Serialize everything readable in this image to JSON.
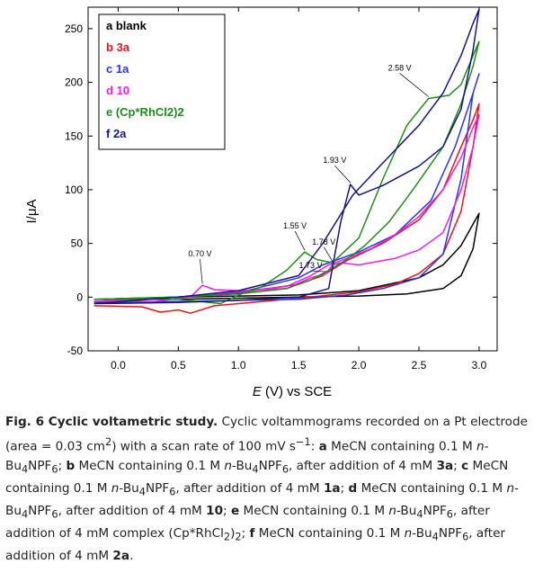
{
  "chart_data": {
    "type": "line",
    "xlabel_symbol": "E",
    "xlabel_rest": " (V) vs SCE",
    "ylabel": "I/μA",
    "xlim": [
      -0.25,
      3.15
    ],
    "ylim": [
      -50,
      270
    ],
    "xticks": [
      0.0,
      0.5,
      1.0,
      1.5,
      2.0,
      2.5,
      3.0
    ],
    "xtick_labels": [
      "0.0",
      "0.5",
      "1.0",
      "1.5",
      "2.0",
      "2.5",
      "3.0"
    ],
    "yticks": [
      -50,
      0,
      50,
      100,
      150,
      200,
      250
    ],
    "ytick_labels": [
      "-50",
      "0",
      "50",
      "100",
      "150",
      "200",
      "250"
    ],
    "legend_position": "top-left",
    "legend": [
      {
        "key": "a",
        "label": "blank",
        "color": "#000000"
      },
      {
        "key": "b",
        "label": "3a",
        "color": "#e8141b"
      },
      {
        "key": "c",
        "label": "1a",
        "color": "#2a37e6"
      },
      {
        "key": "d",
        "label": "10",
        "color": "#e722e0"
      },
      {
        "key": "e",
        "label": "(Cp*RhCl2)2",
        "color": "#228b1f"
      },
      {
        "key": "f",
        "label": "2a",
        "color": "#16167c"
      }
    ],
    "annotations": [
      {
        "text": "0.70 V",
        "x": 0.7,
        "y": 11,
        "label_x": 0.68,
        "label_y": 38
      },
      {
        "text": "1.55 V",
        "x": 1.55,
        "y": 42,
        "label_x": 1.47,
        "label_y": 64
      },
      {
        "text": "1.78 V",
        "x": 1.78,
        "y": 32,
        "label_x": 1.71,
        "label_y": 49
      },
      {
        "text": "1.73 V",
        "x": 1.73,
        "y": 22,
        "label_x": 1.6,
        "label_y": 27
      },
      {
        "text": "1.93 V",
        "x": 1.93,
        "y": 105,
        "label_x": 1.8,
        "label_y": 125
      },
      {
        "text": "2.58 V",
        "x": 2.58,
        "y": 185,
        "label_x": 2.34,
        "label_y": 211
      }
    ],
    "series": [
      {
        "name": "a blank",
        "color": "#000000",
        "x": [
          -0.2,
          0.5,
          1.0,
          1.5,
          2.0,
          2.4,
          2.7,
          2.85,
          2.95,
          3.0,
          2.95,
          2.85,
          2.7,
          2.5,
          2.0,
          1.5,
          1.0,
          0.5,
          -0.2
        ],
        "y": [
          -2,
          -2,
          -1,
          0,
          1,
          3,
          8,
          20,
          45,
          78,
          68,
          48,
          30,
          18,
          6,
          2,
          1,
          0,
          -2
        ]
      },
      {
        "name": "b 3a",
        "color": "#e8141b",
        "x": [
          -0.2,
          0.2,
          0.35,
          0.5,
          0.6,
          0.8,
          1.2,
          1.6,
          2.0,
          2.3,
          2.5,
          2.7,
          2.85,
          2.95,
          3.0,
          2.95,
          2.85,
          2.7,
          2.5,
          2.2,
          1.9,
          1.7,
          1.5,
          1.0,
          0.5,
          -0.2
        ],
        "y": [
          -8,
          -9,
          -14,
          -12,
          -15,
          -8,
          -4,
          0,
          5,
          12,
          22,
          40,
          80,
          140,
          180,
          165,
          140,
          100,
          72,
          50,
          34,
          20,
          12,
          4,
          0,
          -6
        ]
      },
      {
        "name": "c 1a",
        "color": "#2a37e6",
        "x": [
          -0.2,
          0.5,
          1.0,
          1.5,
          1.9,
          2.2,
          2.5,
          2.7,
          2.85,
          2.95,
          3.0,
          2.95,
          2.8,
          2.6,
          2.3,
          2.0,
          1.7,
          1.5,
          1.0,
          0.5,
          -0.2
        ],
        "y": [
          -5,
          -4,
          -3,
          -2,
          2,
          8,
          18,
          40,
          110,
          190,
          208,
          190,
          140,
          90,
          58,
          42,
          30,
          18,
          4,
          0,
          -4
        ]
      },
      {
        "name": "d 10",
        "color": "#e722e0",
        "x": [
          -0.2,
          0.3,
          0.6,
          0.7,
          0.8,
          1.0,
          1.4,
          1.6,
          1.73,
          1.78,
          1.85,
          2.0,
          2.3,
          2.5,
          2.7,
          2.85,
          2.95,
          3.0,
          2.95,
          2.85,
          2.7,
          2.5,
          2.3,
          2.1,
          1.9,
          1.75,
          1.6,
          1.4,
          1.0,
          0.5,
          -0.2
        ],
        "y": [
          -4,
          -4,
          0,
          11,
          7,
          6,
          8,
          18,
          22,
          30,
          32,
          30,
          36,
          44,
          60,
          100,
          140,
          170,
          158,
          130,
          100,
          75,
          58,
          45,
          36,
          30,
          20,
          10,
          5,
          0,
          -4
        ]
      },
      {
        "name": "e (Cp*RhCl2)2",
        "color": "#228b1f",
        "x": [
          -0.2,
          0.5,
          0.85,
          1.0,
          1.2,
          1.4,
          1.55,
          1.65,
          1.78,
          2.0,
          2.2,
          2.4,
          2.58,
          2.75,
          2.85,
          2.95,
          3.0,
          2.95,
          2.85,
          2.7,
          2.45,
          2.25,
          2.05,
          1.9,
          1.75,
          1.6,
          1.4,
          1.0,
          0.5,
          -0.2
        ],
        "y": [
          -2,
          -2,
          -6,
          2,
          10,
          25,
          42,
          35,
          32,
          55,
          110,
          160,
          185,
          188,
          198,
          225,
          238,
          215,
          180,
          140,
          100,
          70,
          48,
          35,
          25,
          16,
          8,
          3,
          0,
          -2
        ]
      },
      {
        "name": "f 2a",
        "color": "#16167c",
        "x": [
          -0.2,
          0.5,
          1.0,
          1.5,
          1.75,
          1.85,
          1.93,
          2.0,
          2.2,
          2.5,
          2.7,
          2.85,
          2.95,
          3.0,
          2.95,
          2.85,
          2.7,
          2.5,
          2.2,
          1.95,
          1.7,
          1.5,
          1.0,
          0.5,
          -0.2
        ],
        "y": [
          -6,
          -5,
          -3,
          0,
          8,
          70,
          105,
          95,
          104,
          122,
          140,
          175,
          230,
          268,
          255,
          225,
          190,
          160,
          125,
          95,
          50,
          20,
          6,
          0,
          -6
        ]
      }
    ]
  },
  "caption": {
    "title": "Fig. 6 Cyclic voltametric study.",
    "t1": " Cyclic voltammograms recorded on a Pt electrode (area = 0.03 cm",
    "area_exp": "2",
    "t2": ") with a scan rate of 100 mV s",
    "rate_exp": "−1",
    "t3": ": ",
    "a_key": "a",
    "a_text": " MeCN containing 0.1 M ",
    "a_n": "n",
    "a_salt": "-Bu",
    "a_sub4": "4",
    "a_npf": "NPF",
    "a_sub6": "6",
    "a_end": "; ",
    "b_key": "b",
    "b_text": " MeCN containing 0.1 M ",
    "b_n": "n",
    "b_salt": "-Bu",
    "b_sub4": "4",
    "b_npf": "NPF",
    "b_sub6": "6",
    "b_after": ", after addition of 4 mM ",
    "b_cmpd": "3a",
    "b_end": "; ",
    "c_key": "c",
    "c_text": " MeCN containing 0.1 M ",
    "c_n": "n",
    "c_salt": "-Bu",
    "c_sub4": "4",
    "c_npf": "NPF",
    "c_sub6": "6",
    "c_after": ", after addition of 4 mM ",
    "c_cmpd": "1a",
    "c_end": "; ",
    "d_key": "d",
    "d_text": " MeCN containing 0.1 M ",
    "d_n": "n",
    "d_salt": "-Bu",
    "d_sub4": "4",
    "d_npf": "NPF",
    "d_sub6": "6",
    "d_after": ", after addition of 4 mM ",
    "d_cmpd": "10",
    "d_end": "; ",
    "e_key": "e",
    "e_text": " MeCN containing 0.1 M ",
    "e_n": "n",
    "e_salt": "-Bu",
    "e_sub4": "4",
    "e_npf": "NPF",
    "e_sub6": "6",
    "e_after": ", after addition of 4 mM complex (Cp*RhCl",
    "e_sub2": "2",
    "e_close": ")",
    "e_sub2b": "2",
    "e_end": "; ",
    "f_key": "f",
    "f_text": " MeCN containing 0.1 M ",
    "f_n": "n",
    "f_salt": "-Bu",
    "f_sub4": "4",
    "f_npf": "NPF",
    "f_sub6": "6",
    "f_after": ", after addition of 4 mM ",
    "f_cmpd": "2a",
    "f_end": "."
  }
}
